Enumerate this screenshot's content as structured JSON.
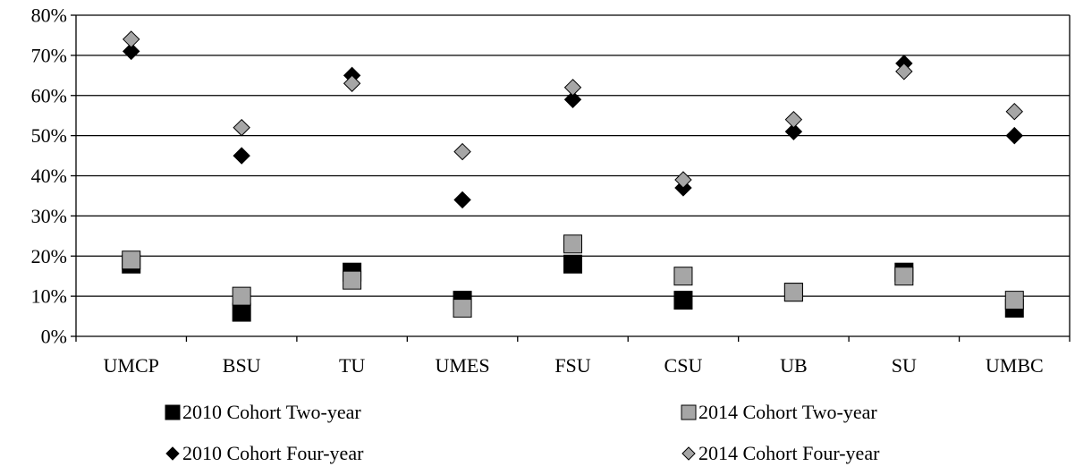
{
  "chart_data": {
    "type": "scatter",
    "title": "",
    "xlabel": "",
    "ylabel": "",
    "categories": [
      "UMCP",
      "BSU",
      "TU",
      "UMES",
      "FSU",
      "CSU",
      "UB",
      "SU",
      "UMBC"
    ],
    "ylim": [
      0,
      80
    ],
    "y_unit": "%",
    "y_ticks": [
      "0%",
      "10%",
      "20%",
      "30%",
      "40%",
      "50%",
      "60%",
      "70%",
      "80%"
    ],
    "grid": "horizontal",
    "legend_position": "bottom",
    "series": [
      {
        "name": "2010 Cohort Two-year",
        "marker": "square",
        "color": "#000000",
        "values": [
          18,
          6,
          16,
          9,
          18,
          9,
          11,
          16,
          7
        ]
      },
      {
        "name": "2014 Cohort Two-year",
        "marker": "square",
        "color": "#a6a6a6",
        "values": [
          19,
          10,
          14,
          7,
          23,
          15,
          11,
          15,
          9
        ]
      },
      {
        "name": "2010 Cohort Four-year",
        "marker": "diamond",
        "color": "#000000",
        "values": [
          71,
          45,
          65,
          34,
          59,
          37,
          51,
          68,
          50
        ]
      },
      {
        "name": "2014 Cohort Four-year",
        "marker": "diamond",
        "color": "#a6a6a6",
        "values": [
          74,
          52,
          63,
          46,
          62,
          39,
          54,
          66,
          56
        ]
      }
    ]
  }
}
